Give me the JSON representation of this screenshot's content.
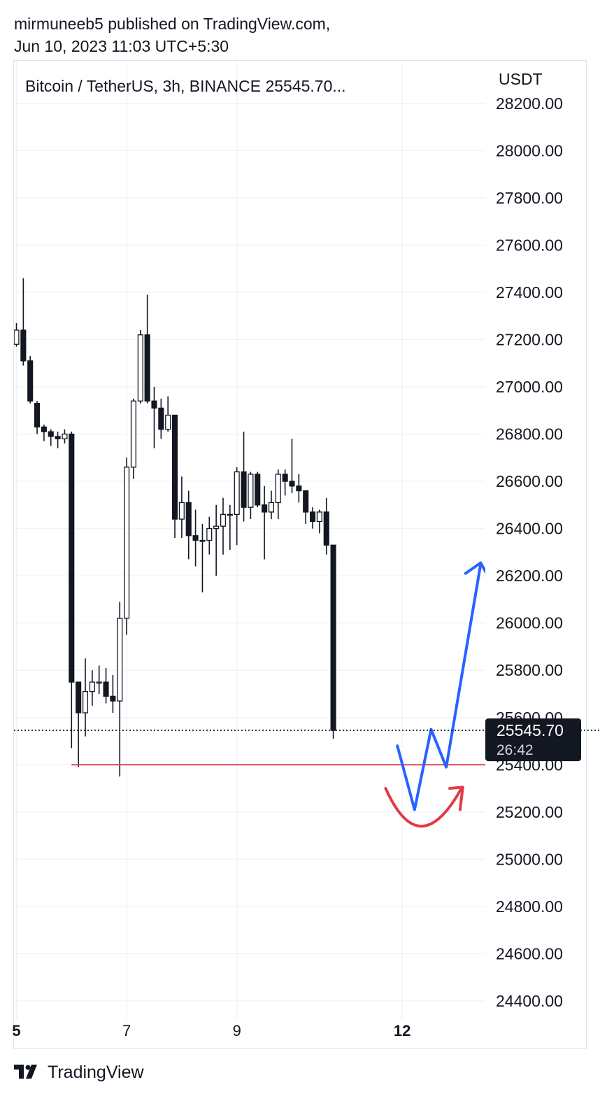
{
  "header": {
    "line1": "mirmuneeb5 published on TradingView.com,",
    "line2": "Jun 10, 2023 11:03 UTC+5:30"
  },
  "footer": {
    "brand": "TradingView",
    "logo_icon": "tradingview-logo-icon"
  },
  "colors": {
    "bear": "#131722",
    "bull": "#ffffff",
    "outline": "#131722",
    "grid": "#f0f3fa",
    "support": "#e0445a",
    "arrow_blue": "#2962ff",
    "curve_red": "#e63946",
    "price_label_bg": "#131722"
  },
  "chart_data": {
    "type": "candlestick",
    "title": "Bitcoin / TetherUS, 3h, BINANCE  25545.70...",
    "symbol": "Bitcoin / TetherUS",
    "interval": "3h",
    "exchange": "BINANCE",
    "currency_label": "USDT",
    "ylim": [
      24320,
      28380
    ],
    "y_ticks": [
      "28200.00",
      "28000.00",
      "27800.00",
      "27600.00",
      "27400.00",
      "27200.00",
      "27000.00",
      "26800.00",
      "26600.00",
      "26400.00",
      "26200.00",
      "26000.00",
      "25800.00",
      "25600.00",
      "25400.00",
      "25200.00",
      "25000.00",
      "24800.00",
      "24600.00",
      "24400.00"
    ],
    "x_ticks": [
      {
        "label": "5",
        "index": 0,
        "bold": true
      },
      {
        "label": "7",
        "index": 16,
        "bold": false
      },
      {
        "label": "9",
        "index": 32,
        "bold": false
      },
      {
        "label": "12",
        "index": 56,
        "bold": true
      }
    ],
    "grid": true,
    "candles": [
      {
        "o": 27180,
        "h": 27270,
        "l": 27170,
        "c": 27240
      },
      {
        "o": 27240,
        "h": 27460,
        "l": 27090,
        "c": 27110
      },
      {
        "o": 27110,
        "h": 27130,
        "l": 26930,
        "c": 26940
      },
      {
        "o": 26930,
        "h": 26940,
        "l": 26800,
        "c": 26830
      },
      {
        "o": 26830,
        "h": 26840,
        "l": 26770,
        "c": 26810
      },
      {
        "o": 26810,
        "h": 26820,
        "l": 26750,
        "c": 26790
      },
      {
        "o": 26790,
        "h": 26810,
        "l": 26740,
        "c": 26780
      },
      {
        "o": 26780,
        "h": 26820,
        "l": 26760,
        "c": 26800
      },
      {
        "o": 26800,
        "h": 26810,
        "l": 25470,
        "c": 25750
      },
      {
        "o": 25750,
        "h": 25750,
        "l": 25390,
        "c": 25620
      },
      {
        "o": 25620,
        "h": 25850,
        "l": 25520,
        "c": 25710
      },
      {
        "o": 25710,
        "h": 25800,
        "l": 25650,
        "c": 25750
      },
      {
        "o": 25750,
        "h": 25820,
        "l": 25700,
        "c": 25750
      },
      {
        "o": 25750,
        "h": 25810,
        "l": 25660,
        "c": 25690
      },
      {
        "o": 25690,
        "h": 25780,
        "l": 25620,
        "c": 25670
      },
      {
        "o": 25670,
        "h": 26090,
        "l": 25350,
        "c": 26020
      },
      {
        "o": 26020,
        "h": 26700,
        "l": 25950,
        "c": 26660
      },
      {
        "o": 26660,
        "h": 26950,
        "l": 26610,
        "c": 26940
      },
      {
        "o": 26940,
        "h": 27240,
        "l": 26930,
        "c": 27220
      },
      {
        "o": 27220,
        "h": 27390,
        "l": 26930,
        "c": 26940
      },
      {
        "o": 26940,
        "h": 27000,
        "l": 26740,
        "c": 26910
      },
      {
        "o": 26910,
        "h": 26950,
        "l": 26780,
        "c": 26820
      },
      {
        "o": 26820,
        "h": 26960,
        "l": 26810,
        "c": 26880
      },
      {
        "o": 26880,
        "h": 26880,
        "l": 26360,
        "c": 26440
      },
      {
        "o": 26440,
        "h": 26620,
        "l": 26360,
        "c": 26510
      },
      {
        "o": 26510,
        "h": 26560,
        "l": 26270,
        "c": 26370
      },
      {
        "o": 26370,
        "h": 26480,
        "l": 26240,
        "c": 26350
      },
      {
        "o": 26350,
        "h": 26420,
        "l": 26130,
        "c": 26350
      },
      {
        "o": 26350,
        "h": 26450,
        "l": 26290,
        "c": 26400
      },
      {
        "o": 26400,
        "h": 26500,
        "l": 26200,
        "c": 26410
      },
      {
        "o": 26410,
        "h": 26530,
        "l": 26290,
        "c": 26460
      },
      {
        "o": 26460,
        "h": 26500,
        "l": 26310,
        "c": 26460
      },
      {
        "o": 26460,
        "h": 26660,
        "l": 26330,
        "c": 26640
      },
      {
        "o": 26640,
        "h": 26810,
        "l": 26430,
        "c": 26490
      },
      {
        "o": 26490,
        "h": 26640,
        "l": 26440,
        "c": 26630
      },
      {
        "o": 26630,
        "h": 26640,
        "l": 26490,
        "c": 26500
      },
      {
        "o": 26500,
        "h": 26580,
        "l": 26270,
        "c": 26470
      },
      {
        "o": 26470,
        "h": 26560,
        "l": 26440,
        "c": 26510
      },
      {
        "o": 26510,
        "h": 26650,
        "l": 26440,
        "c": 26630
      },
      {
        "o": 26630,
        "h": 26650,
        "l": 26540,
        "c": 26600
      },
      {
        "o": 26600,
        "h": 26780,
        "l": 26550,
        "c": 26580
      },
      {
        "o": 26580,
        "h": 26630,
        "l": 26510,
        "c": 26560
      },
      {
        "o": 26560,
        "h": 26560,
        "l": 26420,
        "c": 26470
      },
      {
        "o": 26470,
        "h": 26490,
        "l": 26400,
        "c": 26430
      },
      {
        "o": 26430,
        "h": 26480,
        "l": 26380,
        "c": 26470
      },
      {
        "o": 26470,
        "h": 26530,
        "l": 26290,
        "c": 26330
      },
      {
        "o": 26330,
        "h": 26330,
        "l": 25510,
        "c": 25545.7
      }
    ],
    "last_price": {
      "value": 25545.7,
      "label": "25545.70",
      "countdown": "26:42"
    },
    "support_line": {
      "price": 25400,
      "from_index": 8,
      "to_x_index": 60
    },
    "projection_arrow_blue": [
      {
        "x_index": 55.3,
        "price": 25480
      },
      {
        "x_index": 57.8,
        "price": 25210
      },
      {
        "x_index": 60.2,
        "price": 25550
      },
      {
        "x_index": 62.4,
        "price": 25390
      },
      {
        "x_index": 67.4,
        "price": 26250
      }
    ],
    "projection_arrow_blue_head": [
      {
        "x_index": 65.2,
        "price": 26210
      },
      {
        "x_index": 67.4,
        "price": 26255
      },
      {
        "x_index": 68.8,
        "price": 26180
      }
    ],
    "curve_red": {
      "start": {
        "x_index": 53.6,
        "price": 25300
      },
      "control": {
        "x_index": 58.5,
        "price": 24980
      },
      "end": {
        "x_index": 64.6,
        "price": 25300
      }
    },
    "curve_red_head": [
      {
        "x_index": 62.9,
        "price": 25300
      },
      {
        "x_index": 64.8,
        "price": 25305
      },
      {
        "x_index": 64.4,
        "price": 25210
      }
    ]
  }
}
